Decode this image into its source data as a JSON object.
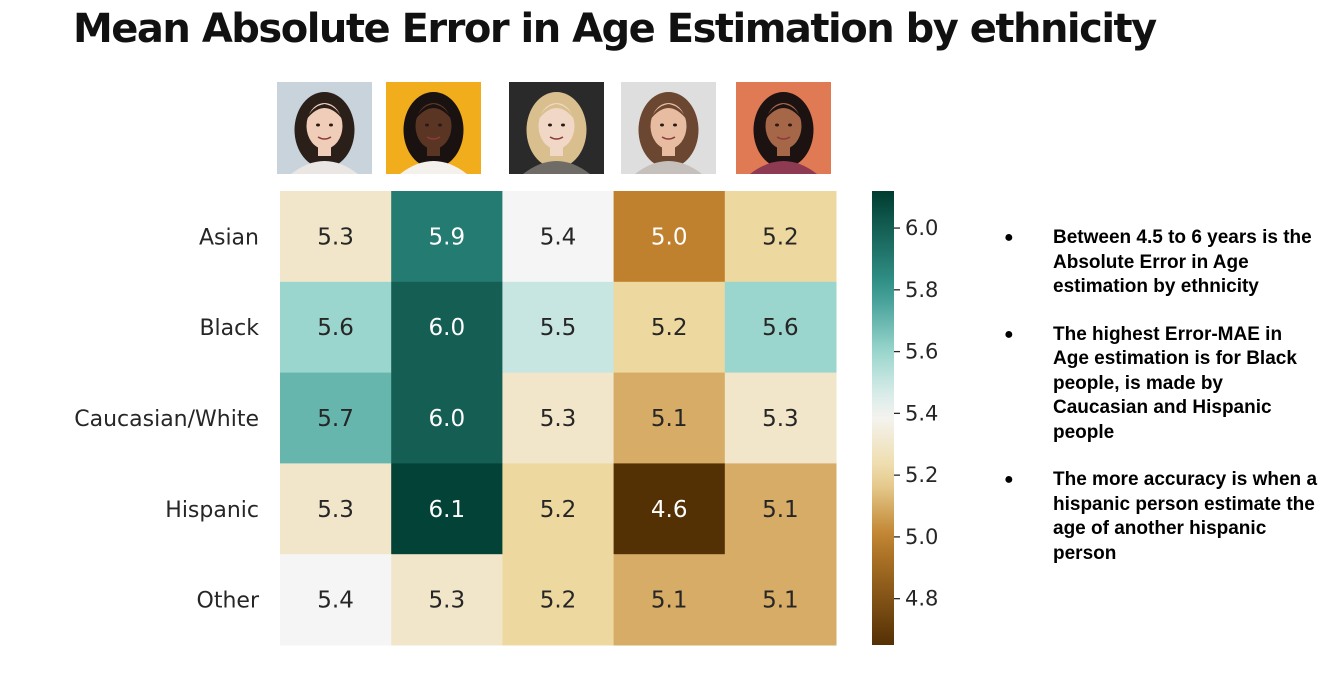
{
  "title": "Mean Absolute Error in Age Estimation by ethnicity",
  "portraits": [
    {
      "icon": "asian-woman-portrait-icon",
      "bg": "#c9d3dc",
      "hair": "#2b1f1a",
      "skin": "#efcdb8",
      "shirt": "#e9e6e4"
    },
    {
      "icon": "black-woman-portrait-icon",
      "bg": "#f2ad1c",
      "hair": "#1a1210",
      "skin": "#5b3524",
      "shirt": "#f4f1ec"
    },
    {
      "icon": "caucasian-woman-portrait-icon",
      "bg": "#2a2a2a",
      "hair": "#d9bf8e",
      "skin": "#f1d7c6",
      "shirt": "#6f6c68"
    },
    {
      "icon": "hispanic-woman-portrait-icon",
      "bg": "#dedede",
      "hair": "#6b4630",
      "skin": "#e7bca1",
      "shirt": "#c5c0bb"
    },
    {
      "icon": "other-woman-portrait-icon",
      "bg": "#e07a55",
      "hair": "#1c1211",
      "skin": "#a56748",
      "shirt": "#8d3a52"
    }
  ],
  "chart_data": {
    "type": "heatmap",
    "rows": [
      "Asian",
      "Black",
      "Caucasian/White",
      "Hispanic",
      "Other"
    ],
    "values": [
      [
        5.3,
        5.9,
        5.4,
        5.0,
        5.2
      ],
      [
        5.6,
        6.0,
        5.5,
        5.2,
        5.6
      ],
      [
        5.7,
        6.0,
        5.3,
        5.1,
        5.3
      ],
      [
        5.3,
        6.1,
        5.2,
        4.6,
        5.1
      ],
      [
        5.4,
        5.3,
        5.2,
        5.1,
        5.1
      ]
    ],
    "display_values": [
      [
        "5.3",
        "5.9",
        "5.4",
        "5.0",
        "5.2"
      ],
      [
        "5.6",
        "6.0",
        "5.5",
        "5.2",
        "5.6"
      ],
      [
        "5.7",
        "6.0",
        "5.3",
        "5.1",
        "5.3"
      ],
      [
        "5.3",
        "6.1",
        "5.2",
        "4.6",
        "5.1"
      ],
      [
        "5.4",
        "5.3",
        "5.2",
        "5.1",
        "5.1"
      ]
    ],
    "colorbar": {
      "range": [
        4.65,
        6.12
      ],
      "ticks": [
        4.8,
        5.0,
        5.2,
        5.4,
        5.6,
        5.8,
        6.0
      ],
      "tick_labels": [
        "4.8",
        "5.0",
        "5.2",
        "5.4",
        "5.6",
        "5.8",
        "6.0"
      ],
      "colormap": "BrBG"
    }
  },
  "notes": [
    "Between 4.5 to 6 years is the Absolute Error in Age estimation by ethnicity",
    "The highest Error-MAE in Age estimation is for Black people, is made by Caucasian and Hispanic people",
    "The more accuracy is when a hispanic person estimate the age of another hispanic person"
  ],
  "bullet_glyph": "●"
}
